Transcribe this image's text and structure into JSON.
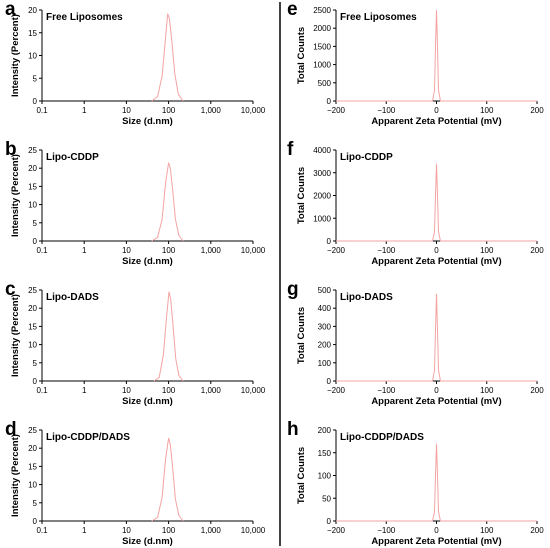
{
  "colors": {
    "curve": "#f4a3a3",
    "axis": "#000000",
    "divider": "#000000",
    "background": "#ffffff"
  },
  "charts": [
    {
      "letter": "a",
      "title": "Free Liposomes",
      "xlabel": "Size (d.nm)",
      "ylabel": "Intensity (Percent)",
      "x_ticks": [
        "0.1",
        "1",
        "10",
        "100",
        "1,000",
        "10,000"
      ],
      "y_ticks": [
        "0",
        "5",
        "10",
        "15",
        "20"
      ]
    },
    {
      "letter": "b",
      "title": "Lipo-CDDP",
      "xlabel": "Size (d.nm)",
      "ylabel": "Intensity (Percent)",
      "x_ticks": [
        "0.1",
        "1",
        "10",
        "100",
        "1,000",
        "10,000"
      ],
      "y_ticks": [
        "0",
        "5",
        "10",
        "15",
        "20",
        "25"
      ]
    },
    {
      "letter": "c",
      "title": "Lipo-DADS",
      "xlabel": "Size (d.nm)",
      "ylabel": "Intensity (Percent)",
      "x_ticks": [
        "0.1",
        "1",
        "10",
        "100",
        "1,000",
        "10,000"
      ],
      "y_ticks": [
        "0",
        "5",
        "10",
        "15",
        "20",
        "25"
      ]
    },
    {
      "letter": "d",
      "title": "Lipo-CDDP/DADS",
      "xlabel": "Size (d.nm)",
      "ylabel": "Intensity (Percent)",
      "x_ticks": [
        "0.1",
        "1",
        "10",
        "100",
        "1,000",
        "10,000"
      ],
      "y_ticks": [
        "0",
        "5",
        "10",
        "15",
        "20",
        "25"
      ]
    },
    {
      "letter": "e",
      "title": "Free Liposomes",
      "xlabel": "Apparent Zeta Potential (mV)",
      "ylabel": "Total Counts",
      "x_ticks": [
        "−200",
        "−100",
        "0",
        "100",
        "200"
      ],
      "y_ticks": [
        "0",
        "500",
        "1000",
        "1500",
        "2000",
        "2500"
      ]
    },
    {
      "letter": "f",
      "title": "Lipo-CDDP",
      "xlabel": "Apparent Zeta Potential (mV)",
      "ylabel": "Total Counts",
      "x_ticks": [
        "−200",
        "−100",
        "0",
        "100",
        "200"
      ],
      "y_ticks": [
        "0",
        "1000",
        "2000",
        "3000",
        "4000"
      ]
    },
    {
      "letter": "g",
      "title": "Lipo-DADS",
      "xlabel": "Apparent Zeta Potential (mV)",
      "ylabel": "Total Counts",
      "x_ticks": [
        "−200",
        "−100",
        "0",
        "100",
        "200"
      ],
      "y_ticks": [
        "0",
        "100",
        "200",
        "300",
        "400",
        "500"
      ]
    },
    {
      "letter": "h",
      "title": "Lipo-CDDP/DADS",
      "xlabel": "Apparent Zeta Potential (mV)",
      "ylabel": "Total Counts",
      "x_ticks": [
        "−200",
        "−100",
        "0",
        "100",
        "200"
      ],
      "y_ticks": [
        "0",
        "50",
        "100",
        "150",
        "200"
      ]
    }
  ],
  "chart_data": [
    {
      "type": "line",
      "title": "Free Liposomes",
      "xlabel": "Size (d.nm)",
      "ylabel": "Intensity (Percent)",
      "x_scale": "log",
      "xlim": [
        0.1,
        10000
      ],
      "ylim": [
        0,
        20
      ],
      "series": [
        {
          "x": [
            40,
            55,
            70,
            85,
            95,
            105,
            120,
            140,
            170,
            220
          ],
          "y": [
            0,
            1,
            5.5,
            14,
            19.2,
            18,
            13,
            6,
            1.5,
            0
          ]
        }
      ]
    },
    {
      "type": "line",
      "title": "Lipo-CDDP",
      "xlabel": "Size (d.nm)",
      "ylabel": "Intensity (Percent)",
      "x_scale": "log",
      "xlim": [
        0.1,
        10000
      ],
      "ylim": [
        0,
        25
      ],
      "series": [
        {
          "x": [
            40,
            55,
            70,
            85,
            100,
            110,
            125,
            145,
            175,
            220
          ],
          "y": [
            0,
            1,
            6,
            16,
            21.5,
            20,
            14,
            6,
            1.5,
            0
          ]
        }
      ]
    },
    {
      "type": "line",
      "title": "Lipo-DADS",
      "xlabel": "Size (d.nm)",
      "ylabel": "Intensity (Percent)",
      "x_scale": "log",
      "xlim": [
        0.1,
        10000
      ],
      "ylim": [
        0,
        25
      ],
      "series": [
        {
          "x": [
            45,
            60,
            75,
            90,
            102,
            112,
            128,
            148,
            175,
            220
          ],
          "y": [
            0,
            1,
            7,
            18,
            24.5,
            22.5,
            15,
            6,
            1.5,
            0
          ]
        }
      ]
    },
    {
      "type": "line",
      "title": "Lipo-CDDP/DADS",
      "xlabel": "Size (d.nm)",
      "ylabel": "Intensity (Percent)",
      "x_scale": "log",
      "xlim": [
        0.1,
        10000
      ],
      "ylim": [
        0,
        25
      ],
      "series": [
        {
          "x": [
            40,
            55,
            70,
            85,
            100,
            110,
            125,
            145,
            175,
            220
          ],
          "y": [
            0,
            1,
            6.5,
            17,
            22.8,
            21,
            14.5,
            6,
            1.5,
            0
          ]
        }
      ]
    },
    {
      "type": "line",
      "title": "Free Liposomes",
      "xlabel": "Apparent Zeta Potential (mV)",
      "ylabel": "Total Counts",
      "xlim": [
        -200,
        200
      ],
      "ylim": [
        0,
        2500
      ],
      "series": [
        {
          "x": [
            -200,
            -8,
            -4,
            -2,
            0,
            2,
            4,
            8,
            200
          ],
          "y": [
            0,
            0,
            300,
            1500,
            2500,
            1500,
            300,
            0,
            0
          ]
        }
      ]
    },
    {
      "type": "line",
      "title": "Lipo-CDDP",
      "xlabel": "Apparent Zeta Potential (mV)",
      "ylabel": "Total Counts",
      "xlim": [
        -200,
        200
      ],
      "ylim": [
        0,
        4000
      ],
      "series": [
        {
          "x": [
            -200,
            -8,
            -4,
            -2,
            0,
            2,
            4,
            8,
            200
          ],
          "y": [
            0,
            0,
            400,
            2000,
            3400,
            2000,
            400,
            0,
            0
          ]
        }
      ]
    },
    {
      "type": "line",
      "title": "Lipo-DADS",
      "xlabel": "Apparent Zeta Potential (mV)",
      "ylabel": "Total Counts",
      "xlim": [
        -200,
        200
      ],
      "ylim": [
        0,
        500
      ],
      "series": [
        {
          "x": [
            -200,
            -8,
            -4,
            -2,
            0,
            2,
            4,
            8,
            200
          ],
          "y": [
            0,
            0,
            60,
            280,
            480,
            280,
            60,
            0,
            0
          ]
        }
      ]
    },
    {
      "type": "line",
      "title": "Lipo-CDDP/DADS",
      "xlabel": "Apparent Zeta Potential (mV)",
      "ylabel": "Total Counts",
      "xlim": [
        -200,
        200
      ],
      "ylim": [
        0,
        200
      ],
      "series": [
        {
          "x": [
            -200,
            -8,
            -4,
            -2,
            0,
            2,
            4,
            8,
            200
          ],
          "y": [
            0,
            0,
            20,
            100,
            170,
            100,
            20,
            0,
            0
          ]
        }
      ]
    }
  ]
}
